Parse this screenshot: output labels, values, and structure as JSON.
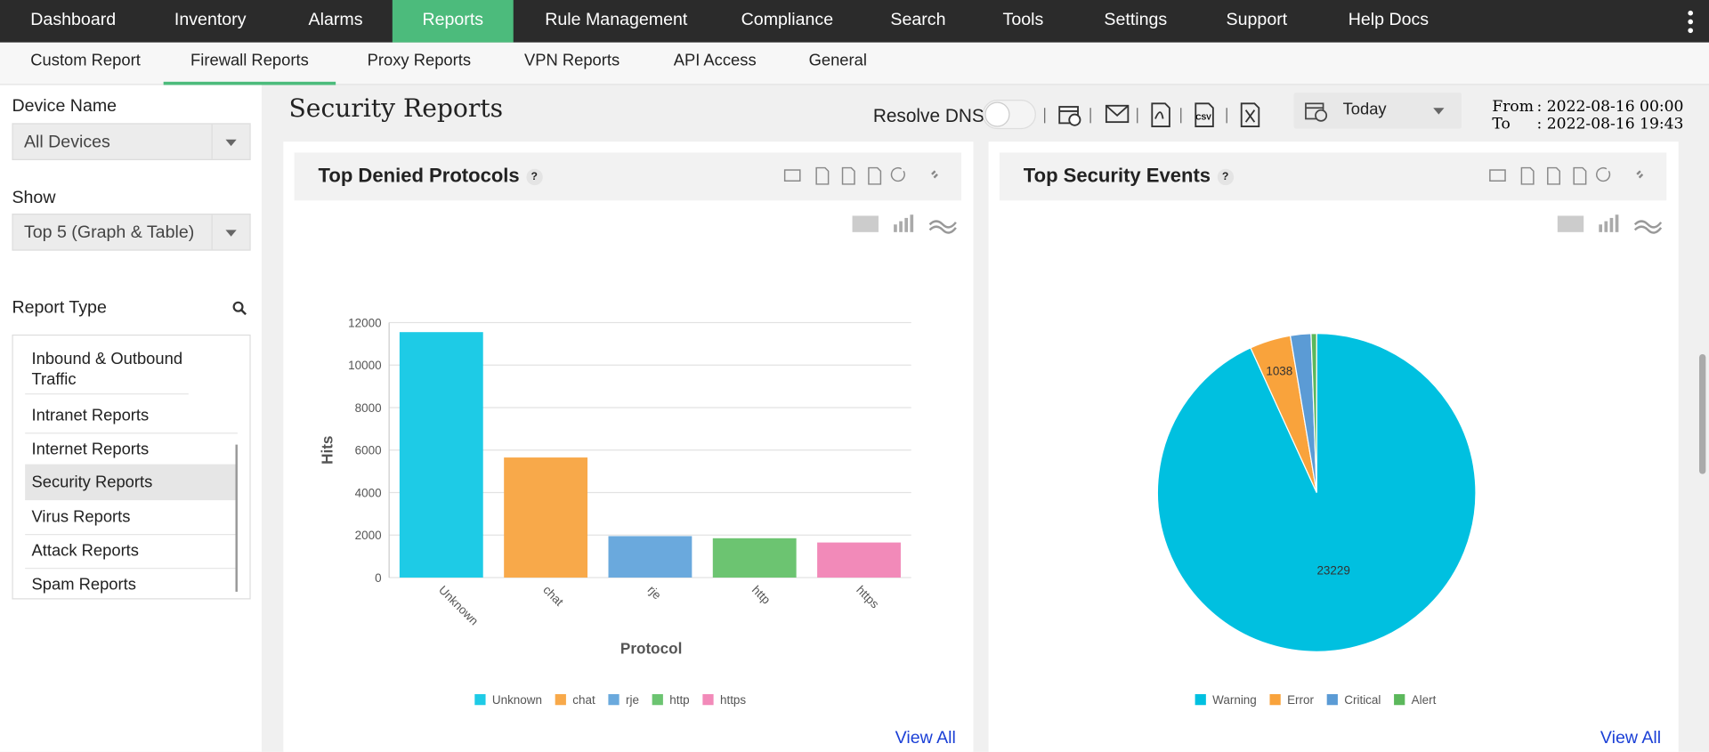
{
  "nav": [
    "Dashboard",
    "Inventory",
    "Alarms",
    "Reports",
    "Rule Management",
    "Compliance",
    "Search",
    "Tools",
    "Settings",
    "Support",
    "Help Docs"
  ],
  "subnav": [
    "Custom Report",
    "Firewall Reports",
    "Proxy Reports",
    "VPN Reports",
    "API Access",
    "General"
  ],
  "sidebar": {
    "device_label": "Device Name",
    "device_value": "All Devices",
    "show_label": "Show",
    "show_value": "Top 5 (Graph & Table)",
    "report_type_label": "Report Type",
    "report_types": [
      "Inbound & Outbound Traffic",
      "Intranet Reports",
      "Internet Reports",
      "Security Reports",
      "Virus Reports",
      "Attack Reports",
      "Spam Reports"
    ]
  },
  "header": {
    "title": "Security Reports",
    "resolve_dns": "Resolve DNS",
    "period": "Today",
    "from_label": "From",
    "from_value": ": 2022-08-16 00:00",
    "to_label": "To",
    "to_value": ": 2022-08-16 19:43"
  },
  "view_all": "View All",
  "chart_data": [
    {
      "type": "bar",
      "title": "Top Denied Protocols",
      "x_label": "Protocol",
      "y_label": "Hits",
      "categories": [
        "Unknown",
        "chat",
        "rje",
        "http",
        "https"
      ],
      "values": [
        11550,
        5650,
        1950,
        1850,
        1650
      ],
      "colors": [
        "#1ecbe6",
        "#f8a94a",
        "#6aa9dd",
        "#6cc471",
        "#f28ab9"
      ],
      "ylim": [
        0,
        12000
      ],
      "yticks": [
        0,
        2000,
        4000,
        6000,
        8000,
        10000,
        12000
      ],
      "grid": true,
      "legend": "bottom"
    },
    {
      "type": "pie",
      "title": "Top Security Events",
      "categories": [
        "Warning",
        "Error",
        "Critical",
        "Alert"
      ],
      "values": [
        23229,
        1038,
        520,
        140
      ],
      "colors": [
        "#00c0e0",
        "#f9a33c",
        "#5b9bd5",
        "#5cb85c"
      ],
      "legend": "bottom"
    }
  ]
}
